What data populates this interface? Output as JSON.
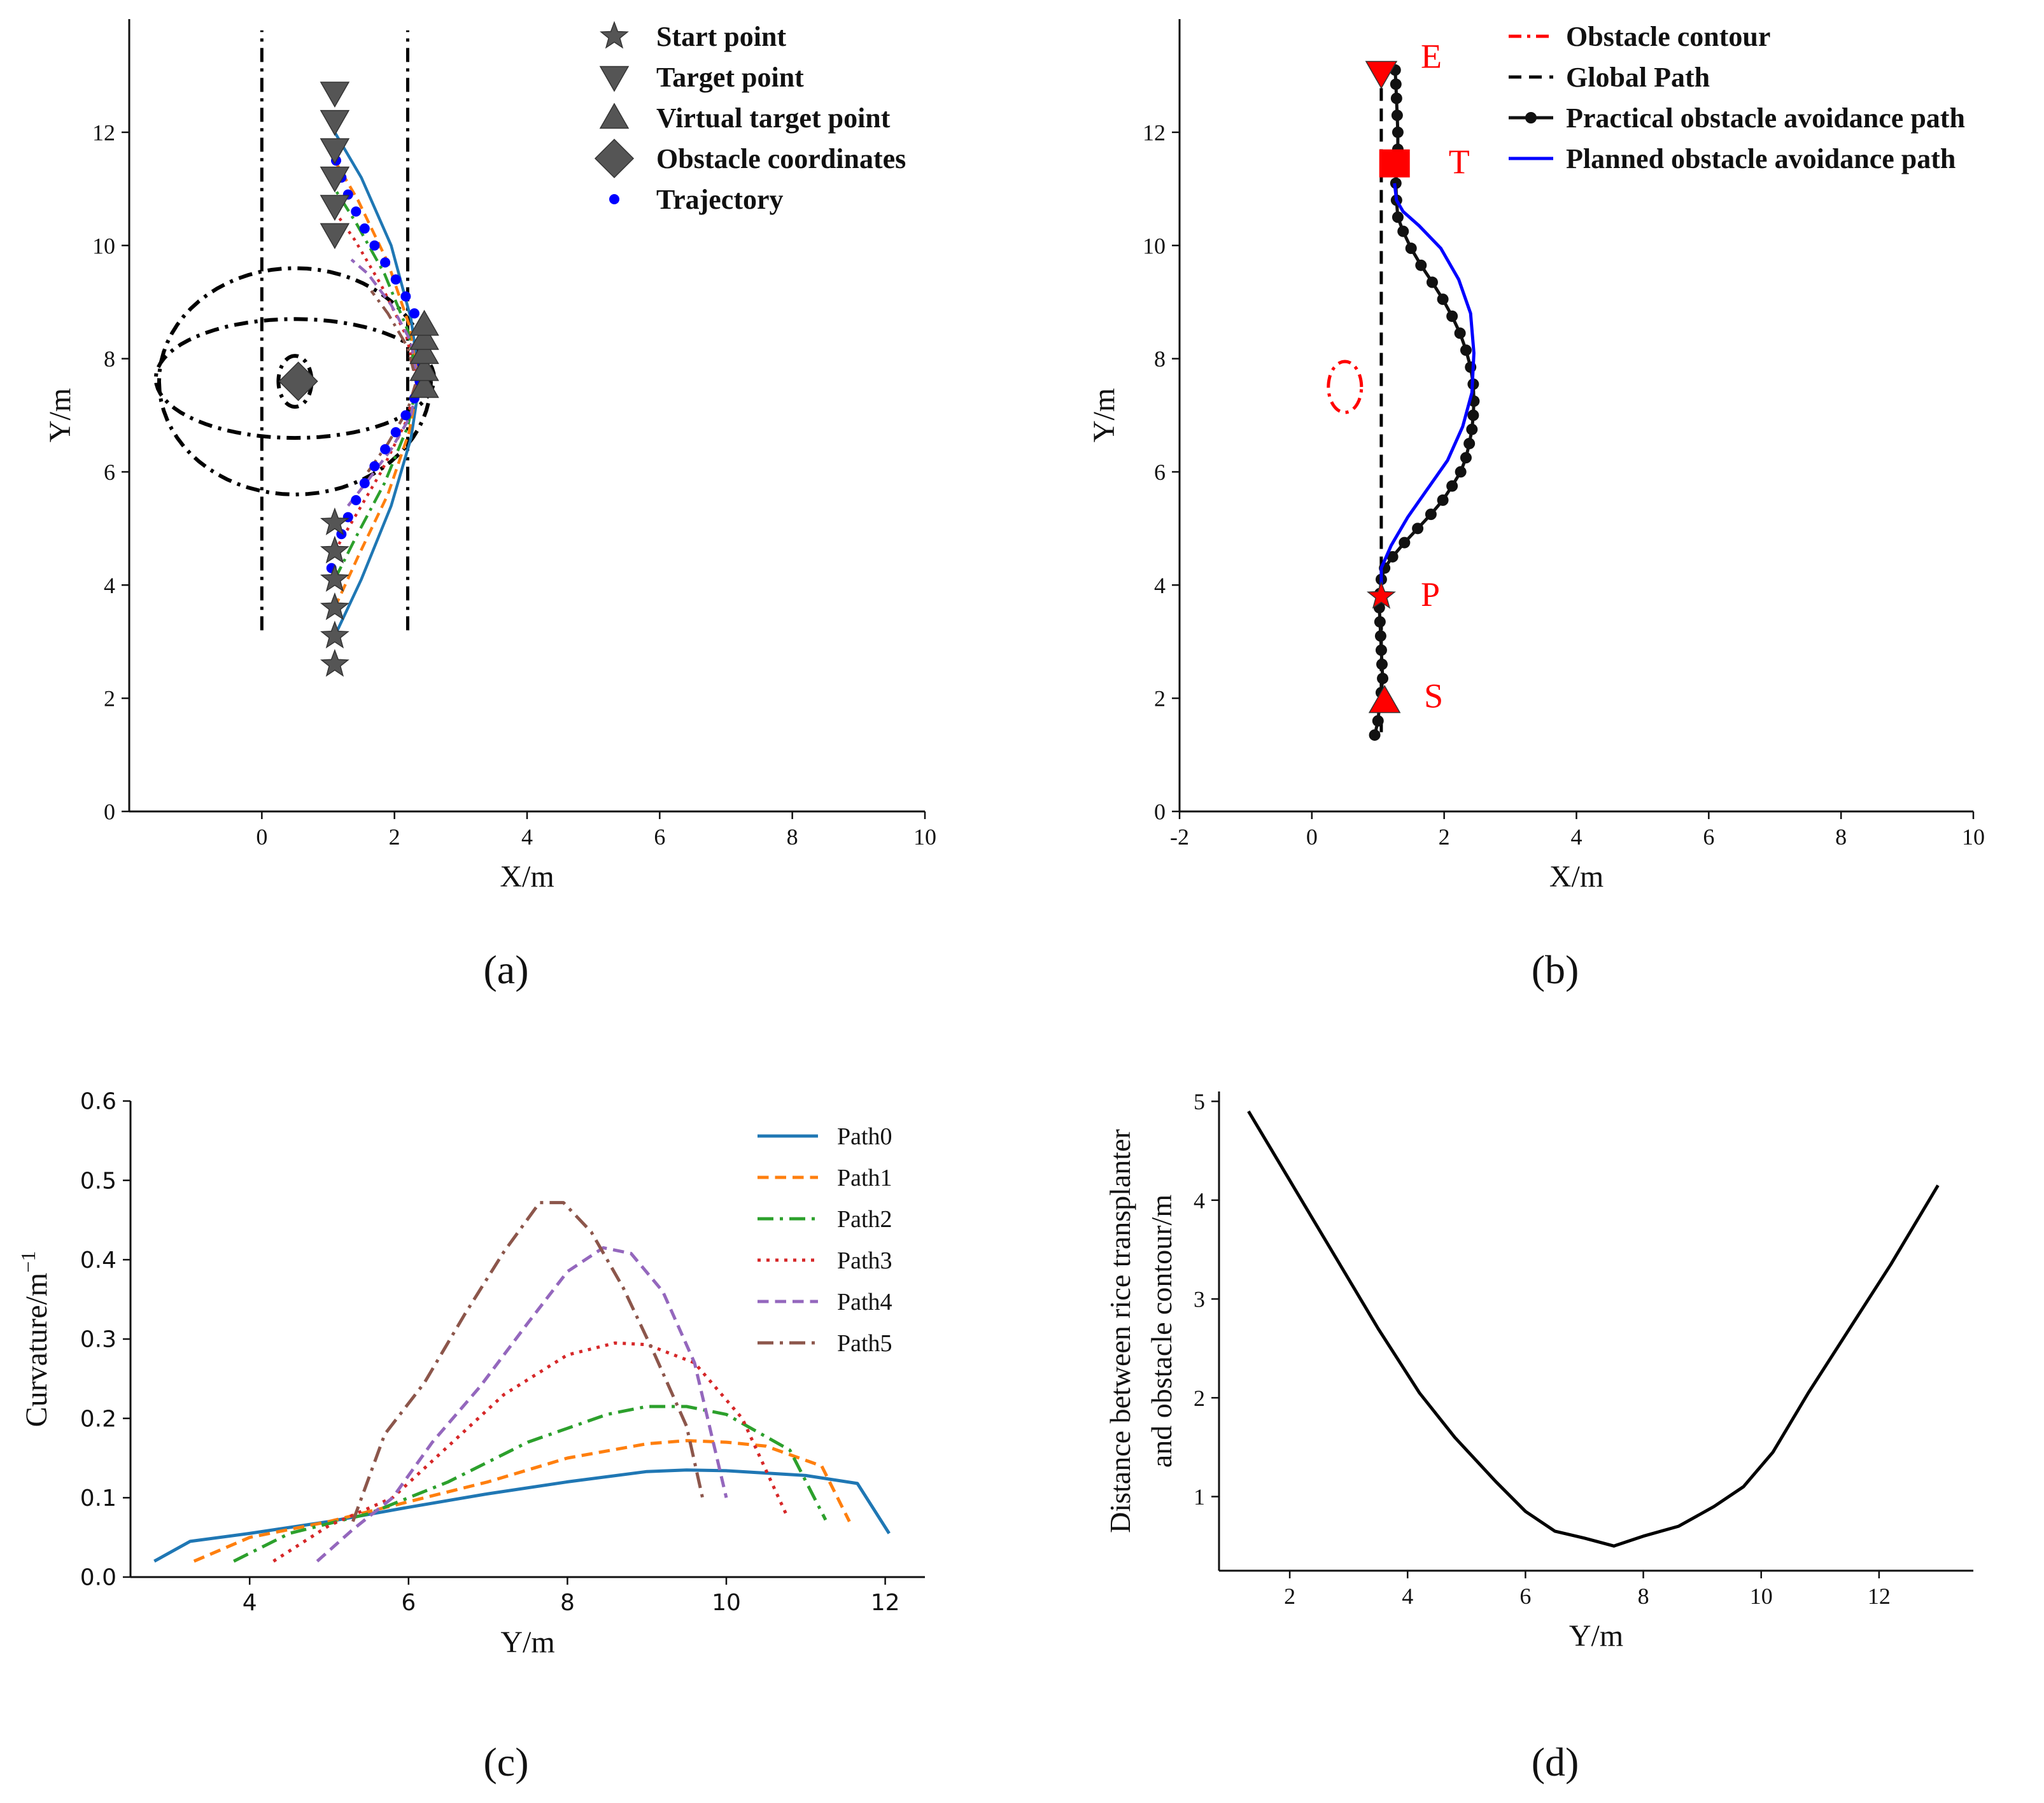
{
  "figure": {
    "panel_labels": [
      "(a)",
      "(b)",
      "(c)",
      "(d)"
    ]
  },
  "chart_data": [
    {
      "id": "a",
      "type": "line",
      "xlabel": "X/m",
      "ylabel": "Y/m",
      "xlim": [
        -2,
        10
      ],
      "ylim": [
        0,
        14
      ],
      "xticks": [
        0,
        2,
        4,
        6,
        8,
        10
      ],
      "yticks": [
        0,
        2,
        4,
        6,
        8,
        10,
        12
      ],
      "legend": [
        "Start point",
        "Target point",
        "Virtual target point",
        "Obstacle coordinates",
        "Trajectory"
      ],
      "colors": {
        "marker": "#555555",
        "trajectory": "#0000ff",
        "contour": "#000000"
      },
      "boundary_lines_x": [
        0,
        2.2
      ],
      "boundary_y": [
        3.2,
        13.8
      ],
      "contours": [
        {
          "cx": 0.5,
          "cy": 7.6,
          "rx": 0.25,
          "ry": 0.45
        },
        {
          "cx": 0.5,
          "cy": 7.65,
          "rx": 2.1,
          "ry": 1.05
        },
        {
          "cx": 0.5,
          "cy": 7.6,
          "rx": 2.05,
          "ry": 2.0
        }
      ],
      "start_points": [
        [
          1.1,
          2.6
        ],
        [
          1.1,
          3.1
        ],
        [
          1.1,
          3.6
        ],
        [
          1.1,
          4.1
        ],
        [
          1.1,
          4.6
        ],
        [
          1.1,
          5.1
        ]
      ],
      "target_points": [
        [
          1.1,
          10.2
        ],
        [
          1.1,
          10.7
        ],
        [
          1.1,
          11.2
        ],
        [
          1.1,
          11.7
        ],
        [
          1.1,
          12.2
        ],
        [
          1.1,
          12.7
        ]
      ],
      "virtual_target_points": [
        [
          2.45,
          7.5
        ],
        [
          2.45,
          7.8
        ],
        [
          2.45,
          8.1
        ],
        [
          2.45,
          8.35
        ],
        [
          2.45,
          8.6
        ]
      ],
      "obstacle_coordinates": [
        [
          0.55,
          7.6
        ]
      ],
      "trajectory_x": [
        1.05,
        1.12,
        1.2,
        1.3,
        1.42,
        1.55,
        1.7,
        1.86,
        2.02,
        2.17,
        2.3,
        2.38,
        2.42,
        2.42,
        2.38,
        2.3,
        2.17,
        2.02,
        1.86,
        1.7,
        1.55,
        1.42,
        1.3,
        1.2,
        1.12,
        1.05
      ],
      "trajectory_y": [
        4.3,
        4.6,
        4.9,
        5.2,
        5.5,
        5.8,
        6.1,
        6.4,
        6.7,
        7.0,
        7.3,
        7.6,
        7.9,
        8.2,
        8.5,
        8.8,
        9.1,
        9.4,
        9.7,
        10.0,
        10.3,
        10.6,
        10.9,
        11.2,
        11.5,
        11.8
      ],
      "series": [
        {
          "name": "Path0",
          "color": "#1f77b4",
          "dash": "solid",
          "x": [
            1.1,
            1.5,
            1.95,
            2.25,
            2.38,
            2.25,
            1.95,
            1.5,
            1.1
          ],
          "y": [
            3.1,
            4.1,
            5.4,
            6.6,
            7.6,
            8.7,
            10.0,
            11.2,
            12.0
          ]
        },
        {
          "name": "Path1",
          "color": "#ff7f0e",
          "dash": "dashed",
          "x": [
            1.1,
            1.45,
            1.9,
            2.22,
            2.36,
            2.22,
            1.9,
            1.45,
            1.1
          ],
          "y": [
            3.6,
            4.5,
            5.6,
            6.7,
            7.6,
            8.6,
            9.7,
            10.8,
            11.5
          ]
        },
        {
          "name": "Path2",
          "color": "#2ca02c",
          "dash": "dashdot",
          "x": [
            1.1,
            1.42,
            1.85,
            2.2,
            2.35,
            2.2,
            1.85,
            1.42,
            1.1
          ],
          "y": [
            4.1,
            4.85,
            5.8,
            6.8,
            7.6,
            8.5,
            9.5,
            10.4,
            11.0
          ]
        },
        {
          "name": "Path3",
          "color": "#d62728",
          "dash": "dotted",
          "x": [
            1.1,
            1.4,
            1.8,
            2.18,
            2.34,
            2.18,
            1.8,
            1.4,
            1.1
          ],
          "y": [
            4.6,
            5.2,
            6.0,
            6.9,
            7.6,
            8.4,
            9.3,
            10.1,
            10.6
          ]
        },
        {
          "name": "Path4",
          "color": "#9467bd",
          "dash": "dashed",
          "x": [
            1.3,
            1.6,
            1.95,
            2.25,
            2.35,
            2.25,
            1.95,
            1.6,
            1.35
          ],
          "y": [
            5.4,
            5.85,
            6.4,
            7.0,
            7.6,
            8.3,
            8.95,
            9.5,
            9.75
          ]
        },
        {
          "name": "Path5",
          "color": "#8c564b",
          "dash": "dashdot",
          "x": [
            1.6,
            1.9,
            2.2,
            2.33,
            2.2,
            1.9,
            1.65
          ],
          "y": [
            6.0,
            6.5,
            7.1,
            7.6,
            8.2,
            8.8,
            9.2
          ]
        }
      ]
    },
    {
      "id": "b",
      "type": "line",
      "xlabel": "X/m",
      "ylabel": "Y/m",
      "xlim": [
        -2,
        10
      ],
      "ylim": [
        0,
        14
      ],
      "xticks": [
        -2,
        0,
        2,
        4,
        6,
        8,
        10
      ],
      "yticks": [
        0,
        2,
        4,
        6,
        8,
        10,
        12
      ],
      "legend": [
        "Obstacle contour",
        "Global Path",
        "Practical obstacle avoidance path",
        "Planned obstacle avoidance path"
      ],
      "colors": {
        "obstacle": "#ff0000",
        "global": "#000000",
        "practical": "#111111",
        "planned": "#0000ff",
        "annotation": "#ff0000"
      },
      "annotations": [
        "E",
        "T",
        "P",
        "S"
      ],
      "obstacle_contour": {
        "cx": 0.5,
        "cy": 7.5,
        "rx": 0.25,
        "ry": 0.45
      },
      "global_path_x": [
        1.05,
        1.05
      ],
      "global_path_y": [
        1.4,
        13.1
      ],
      "key_points": {
        "E": [
          1.05,
          13.05
        ],
        "T": [
          1.25,
          11.45
        ],
        "P": [
          1.05,
          3.8
        ],
        "S": [
          1.1,
          1.95
        ]
      },
      "practical_x": [
        0.95,
        1.0,
        1.02,
        1.05,
        1.07,
        1.06,
        1.05,
        1.04,
        1.03,
        1.02,
        1.03,
        1.05,
        1.1,
        1.22,
        1.4,
        1.6,
        1.8,
        1.98,
        2.12,
        2.25,
        2.33,
        2.38,
        2.42,
        2.44,
        2.45,
        2.44,
        2.4,
        2.33,
        2.24,
        2.12,
        1.98,
        1.82,
        1.65,
        1.5,
        1.38,
        1.3,
        1.28,
        1.27,
        1.28,
        1.3,
        1.3,
        1.29,
        1.28,
        1.27,
        1.26
      ],
      "practical_y": [
        1.35,
        1.6,
        1.85,
        2.1,
        2.35,
        2.6,
        2.85,
        3.1,
        3.35,
        3.6,
        3.85,
        4.1,
        4.3,
        4.5,
        4.75,
        5.0,
        5.25,
        5.5,
        5.75,
        6.0,
        6.25,
        6.5,
        6.75,
        7.0,
        7.25,
        7.55,
        7.85,
        8.15,
        8.45,
        8.75,
        9.05,
        9.35,
        9.65,
        9.95,
        10.25,
        10.5,
        10.8,
        11.1,
        11.4,
        11.7,
        12.0,
        12.3,
        12.6,
        12.85,
        13.1
      ],
      "planned_x": [
        1.05,
        1.05,
        1.2,
        1.45,
        1.75,
        2.05,
        2.28,
        2.42,
        2.45,
        2.4,
        2.22,
        1.95,
        1.62,
        1.38,
        1.28,
        1.25
      ],
      "planned_y": [
        4.0,
        4.3,
        4.7,
        5.2,
        5.7,
        6.2,
        6.8,
        7.4,
        8.1,
        8.8,
        9.4,
        9.95,
        10.35,
        10.6,
        10.8,
        11.1
      ]
    },
    {
      "id": "c",
      "type": "line",
      "xlabel": "Y/m",
      "ylabel": "Curvature/m",
      "ylabel_exponent": "−1",
      "xlim": [
        2.5,
        12.5
      ],
      "ylim": [
        0,
        0.6
      ],
      "xticks": [
        4,
        6,
        8,
        10,
        12
      ],
      "yticks": [
        0.0,
        0.1,
        0.2,
        0.3,
        0.4,
        0.5,
        0.6
      ],
      "yticklabels": [
        "0.0",
        "0.1",
        "0.2",
        "0.3",
        "0.4",
        "0.5",
        "0.6"
      ],
      "series": [
        {
          "name": "Path0",
          "color": "#1f77b4",
          "dash": "solid",
          "x": [
            2.8,
            3.25,
            4.0,
            5.0,
            6.0,
            7.0,
            8.0,
            9.0,
            9.5,
            10.0,
            11.0,
            11.65,
            12.05
          ],
          "y": [
            0.02,
            0.045,
            0.055,
            0.07,
            0.088,
            0.105,
            0.12,
            0.133,
            0.135,
            0.134,
            0.128,
            0.118,
            0.055
          ]
        },
        {
          "name": "Path1",
          "color": "#ff7f0e",
          "dash": "dashed",
          "x": [
            3.3,
            4.0,
            5.0,
            6.0,
            7.0,
            8.0,
            9.0,
            9.5,
            10.0,
            10.5,
            11.2,
            11.55
          ],
          "y": [
            0.02,
            0.05,
            0.07,
            0.095,
            0.12,
            0.15,
            0.168,
            0.172,
            0.17,
            0.165,
            0.14,
            0.07
          ]
        },
        {
          "name": "Path2",
          "color": "#2ca02c",
          "dash": "dashdot",
          "x": [
            3.8,
            4.5,
            5.5,
            6.5,
            7.5,
            8.5,
            9.0,
            9.5,
            10.0,
            10.8,
            11.25
          ],
          "y": [
            0.02,
            0.055,
            0.08,
            0.12,
            0.17,
            0.205,
            0.215,
            0.215,
            0.205,
            0.16,
            0.072
          ]
        },
        {
          "name": "Path3",
          "color": "#d62728",
          "dash": "dotted",
          "x": [
            4.3,
            5.0,
            5.8,
            6.5,
            7.2,
            8.0,
            8.6,
            9.0,
            9.6,
            10.2,
            10.75
          ],
          "y": [
            0.02,
            0.065,
            0.1,
            0.165,
            0.23,
            0.28,
            0.295,
            0.293,
            0.27,
            0.2,
            0.08
          ]
        },
        {
          "name": "Path4",
          "color": "#9467bd",
          "dash": "dashed",
          "x": [
            4.85,
            5.3,
            5.8,
            6.3,
            6.9,
            7.5,
            8.0,
            8.45,
            8.8,
            9.2,
            9.6,
            10.0
          ],
          "y": [
            0.02,
            0.06,
            0.1,
            0.17,
            0.24,
            0.32,
            0.385,
            0.415,
            0.408,
            0.36,
            0.27,
            0.1
          ]
        },
        {
          "name": "Path5",
          "color": "#8c564b",
          "dash": "dashdot",
          "x": [
            5.3,
            5.7,
            6.2,
            6.7,
            7.2,
            7.65,
            7.95,
            8.3,
            8.7,
            9.1,
            9.5,
            9.7
          ],
          "y": [
            0.07,
            0.18,
            0.245,
            0.33,
            0.41,
            0.472,
            0.472,
            0.435,
            0.365,
            0.28,
            0.19,
            0.1
          ]
        }
      ]
    },
    {
      "id": "d",
      "type": "line",
      "xlabel": "Y/m",
      "ylabel_line1": "Distance between rice transplanter",
      "ylabel_line2": "and obstacle contour/m",
      "xlim": [
        0.8,
        13.6
      ],
      "ylim": [
        0.25,
        5.1
      ],
      "xticks": [
        2,
        4,
        6,
        8,
        10,
        12
      ],
      "yticks": [
        1,
        2,
        3,
        4,
        5
      ],
      "series": [
        {
          "name": "distance",
          "color": "#000000",
          "dash": "solid",
          "x": [
            1.3,
            2.0,
            2.8,
            3.5,
            4.2,
            4.8,
            5.5,
            6.0,
            6.5,
            7.0,
            7.5,
            8.0,
            8.6,
            9.2,
            9.7,
            10.2,
            10.8,
            11.5,
            12.2,
            13.0
          ],
          "y": [
            4.9,
            4.2,
            3.4,
            2.7,
            2.05,
            1.6,
            1.15,
            0.85,
            0.65,
            0.58,
            0.5,
            0.6,
            0.7,
            0.9,
            1.1,
            1.45,
            2.05,
            2.7,
            3.35,
            4.15
          ]
        }
      ]
    }
  ]
}
